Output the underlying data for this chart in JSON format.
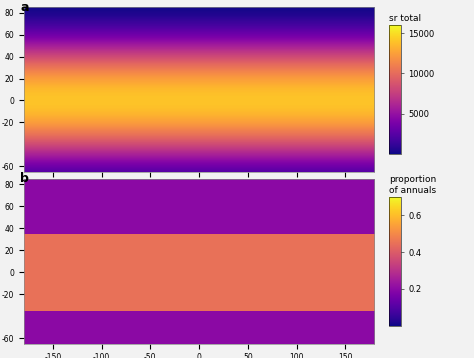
{
  "title_a": "a",
  "title_b": "b",
  "colorbar_a_label": "sr total",
  "colorbar_a_ticks": [
    5000,
    10000,
    15000
  ],
  "colorbar_a_vmin": 0,
  "colorbar_a_vmax": 16000,
  "colorbar_b_label": "proportion\nof annuals",
  "colorbar_b_ticks": [
    0.2,
    0.4,
    0.6
  ],
  "colorbar_b_vmin": 0,
  "colorbar_b_vmax": 0.7,
  "cmap": "plasma",
  "xlim": [
    -180,
    180
  ],
  "ylim": [
    -65,
    85
  ],
  "xlabel_ticks": [
    -150,
    -100,
    -50,
    0,
    50,
    100,
    150
  ],
  "ylabel_ticks_a": [
    -60,
    -20,
    0,
    20,
    40,
    60,
    80
  ],
  "ylabel_ticks_b": [
    -60,
    -20,
    0,
    20,
    40,
    60,
    80
  ],
  "background_color": "#f2f2f2",
  "ocean_color": "white",
  "border_color": "white",
  "border_linewidth": 0.3,
  "figsize": [
    4.74,
    3.58
  ],
  "dpi": 100,
  "seed_a": 42,
  "seed_b": 99
}
